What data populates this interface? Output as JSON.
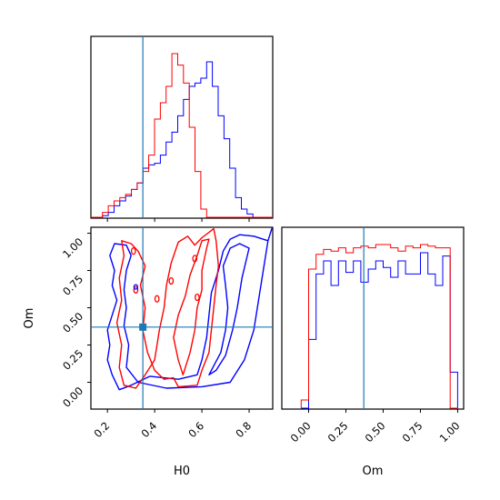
{
  "chart_data": {
    "type": "corner",
    "truth": {
      "H0": 0.35,
      "Om": 0.37
    },
    "colors": {
      "red": "#ff0000",
      "blue": "#0000ff",
      "truth": "#1f77b4"
    },
    "axes": {
      "H0": {
        "label": "H0",
        "range": [
          0.13,
          0.9
        ],
        "ticks": [
          0.2,
          0.4,
          0.6,
          0.8
        ],
        "tick_labels": [
          "0.2",
          "0.4",
          "0.6",
          "0.8"
        ]
      },
      "Om": {
        "label": "Om",
        "range": [
          -0.18,
          1.04
        ],
        "ticks": [
          0.0,
          0.25,
          0.5,
          0.75,
          1.0
        ],
        "tick_labels": [
          "0.00",
          "0.25",
          "0.50",
          "0.75",
          "1.00"
        ]
      }
    },
    "hist_H0": {
      "bins_start": 0.13,
      "bin_width": 0.0245,
      "red": [
        0,
        0,
        0.03,
        0.07,
        0.1,
        0.12,
        0.14,
        0.17,
        0.21,
        0.28,
        0.38,
        0.6,
        0.7,
        0.8,
        1.0,
        0.93,
        0.82,
        0.55,
        0.28,
        0.05,
        0,
        0,
        0,
        0,
        0,
        0,
        0,
        0,
        0,
        0,
        0,
        0
      ],
      "blue": [
        0,
        0,
        0.01,
        0.03,
        0.07,
        0.1,
        0.13,
        0.17,
        0.21,
        0.3,
        0.32,
        0.33,
        0.38,
        0.46,
        0.52,
        0.62,
        0.72,
        0.8,
        0.82,
        0.85,
        0.95,
        0.8,
        0.62,
        0.48,
        0.3,
        0.12,
        0.05,
        0.02,
        0,
        0,
        0,
        0
      ]
    },
    "hist_Om": {
      "bins_start": -0.05,
      "bin_width": 0.05,
      "red": [
        0.05,
        0.85,
        0.94,
        0.97,
        0.96,
        0.98,
        0.95,
        0.98,
        0.99,
        0.98,
        1.0,
        1.0,
        0.98,
        0.96,
        0.99,
        0.98,
        1.0,
        0.99,
        0.98,
        0.98,
        0.0
      ],
      "blue": [
        0,
        0.42,
        0.82,
        0.9,
        0.75,
        0.9,
        0.83,
        0.9,
        0.77,
        0.85,
        0.9,
        0.86,
        0.8,
        0.9,
        0.82,
        0.82,
        0.95,
        0.82,
        0.75,
        0.93,
        0.22
      ]
    }
  }
}
